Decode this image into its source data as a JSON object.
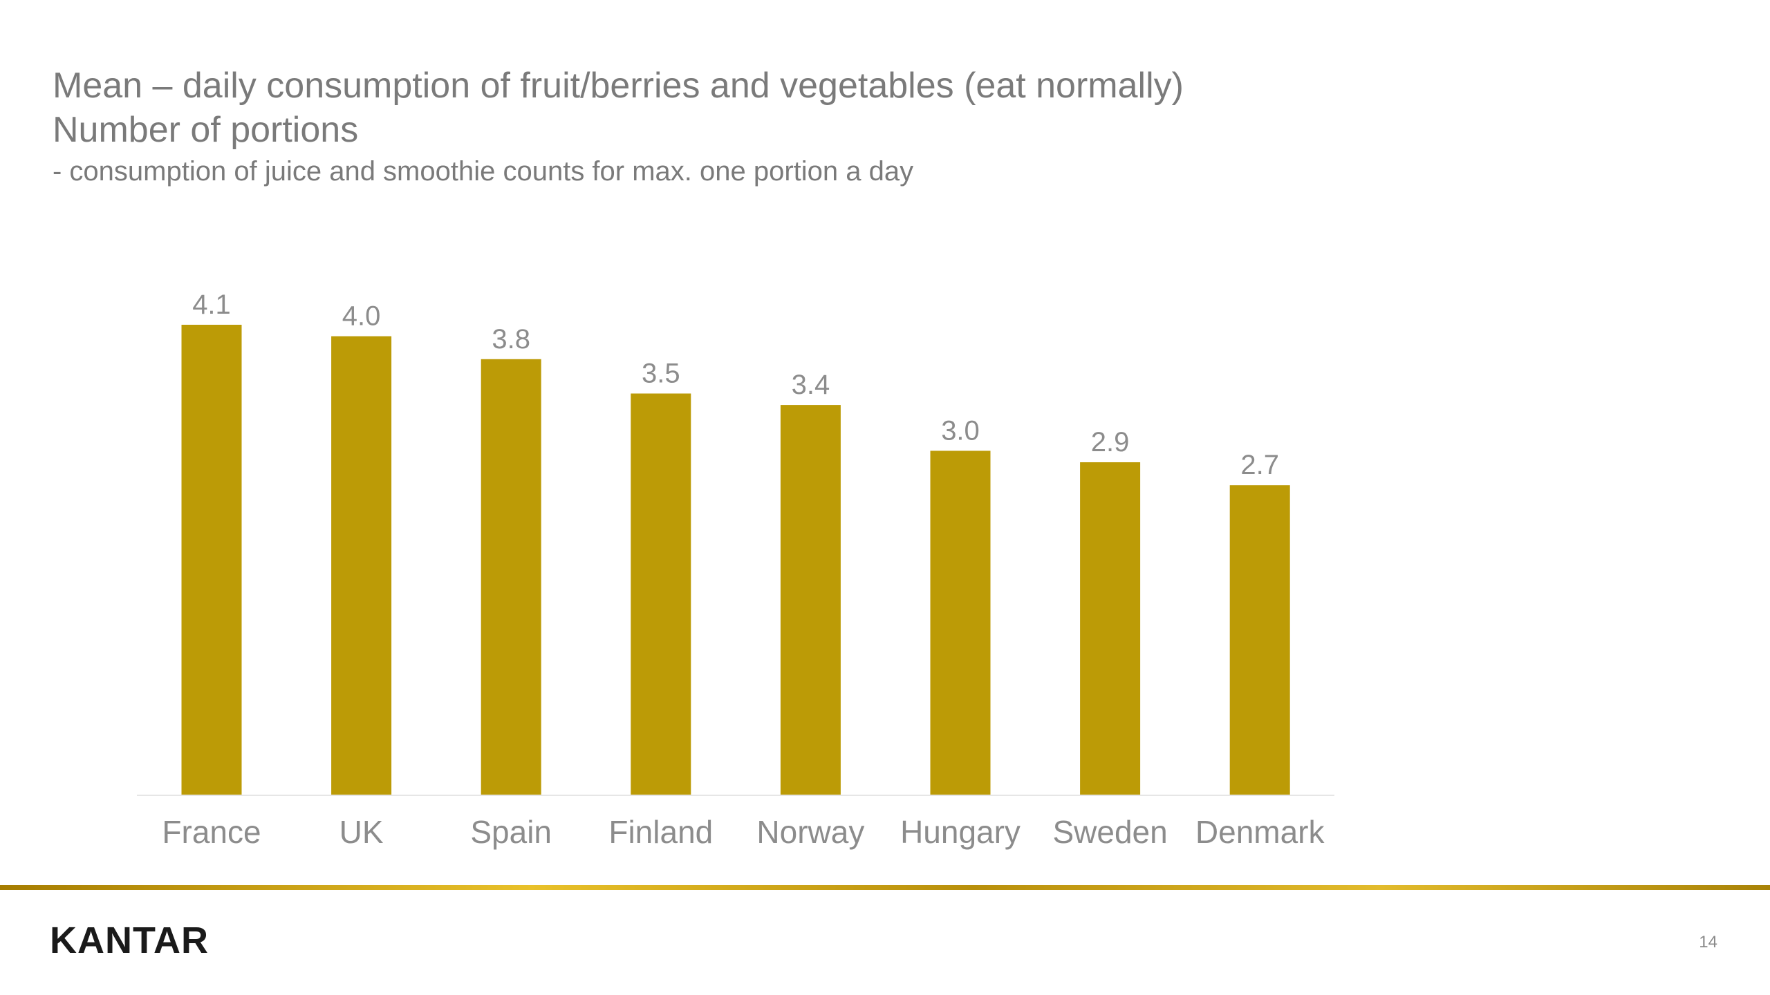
{
  "title": {
    "line1": "Mean – daily consumption of fruit/berries and vegetables (eat normally)",
    "line2": "Number of portions",
    "note": "- consumption of juice and smoothie counts for max. one portion a day"
  },
  "chart_data": {
    "type": "bar",
    "categories": [
      "France",
      "UK",
      "Spain",
      "Finland",
      "Norway",
      "Hungary",
      "Sweden",
      "Denmark"
    ],
    "values": [
      4.1,
      4.0,
      3.8,
      3.5,
      3.4,
      3.0,
      2.9,
      2.7
    ],
    "data_labels": [
      "4.1",
      "4.0",
      "3.8",
      "3.5",
      "3.4",
      "3.0",
      "2.9",
      "2.7"
    ],
    "xlabel": "",
    "ylabel": "",
    "ylim": [
      0,
      4.1
    ],
    "grid": false,
    "legend": "none",
    "bar_color": "#bc9b06",
    "label_color": "#8c8c8c"
  },
  "footer": {
    "logo": "KANTAR",
    "page_number": "14",
    "accent_color": "#c79a00"
  }
}
